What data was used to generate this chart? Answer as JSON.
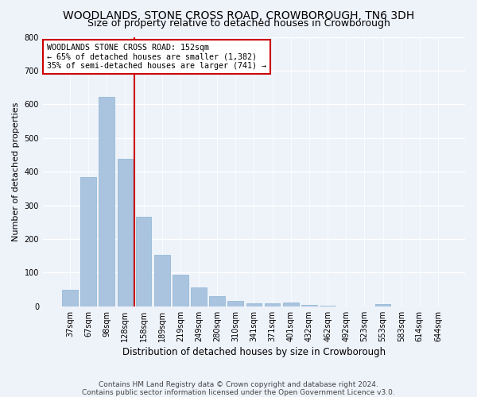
{
  "title": "WOODLANDS, STONE CROSS ROAD, CROWBOROUGH, TN6 3DH",
  "subtitle": "Size of property relative to detached houses in Crowborough",
  "xlabel": "Distribution of detached houses by size in Crowborough",
  "ylabel": "Number of detached properties",
  "footer_line1": "Contains HM Land Registry data © Crown copyright and database right 2024.",
  "footer_line2": "Contains public sector information licensed under the Open Government Licence v3.0.",
  "categories": [
    "37sqm",
    "67sqm",
    "98sqm",
    "128sqm",
    "158sqm",
    "189sqm",
    "219sqm",
    "249sqm",
    "280sqm",
    "310sqm",
    "341sqm",
    "371sqm",
    "401sqm",
    "432sqm",
    "462sqm",
    "492sqm",
    "523sqm",
    "553sqm",
    "583sqm",
    "614sqm",
    "644sqm"
  ],
  "values": [
    48,
    383,
    622,
    438,
    265,
    153,
    95,
    57,
    30,
    17,
    10,
    10,
    12,
    5,
    2,
    0,
    0,
    6,
    0,
    0,
    0
  ],
  "bar_color": "#aac4df",
  "bar_edge_color": "#8ab4d4",
  "reference_line_color": "#cc0000",
  "annotation_text": "WOODLANDS STONE CROSS ROAD: 152sqm\n← 65% of detached houses are smaller (1,382)\n35% of semi-detached houses are larger (741) →",
  "annotation_box_color": "#ffffff",
  "annotation_box_edge_color": "#cc0000",
  "ylim": [
    0,
    800
  ],
  "yticks": [
    0,
    100,
    200,
    300,
    400,
    500,
    600,
    700,
    800
  ],
  "bg_color": "#eef2f9",
  "axes_bg_color": "#eef2f9",
  "grid_color": "#ffffff",
  "title_fontsize": 10,
  "subtitle_fontsize": 9,
  "xlabel_fontsize": 8.5,
  "ylabel_fontsize": 8,
  "tick_fontsize": 7,
  "footer_fontsize": 6.5
}
